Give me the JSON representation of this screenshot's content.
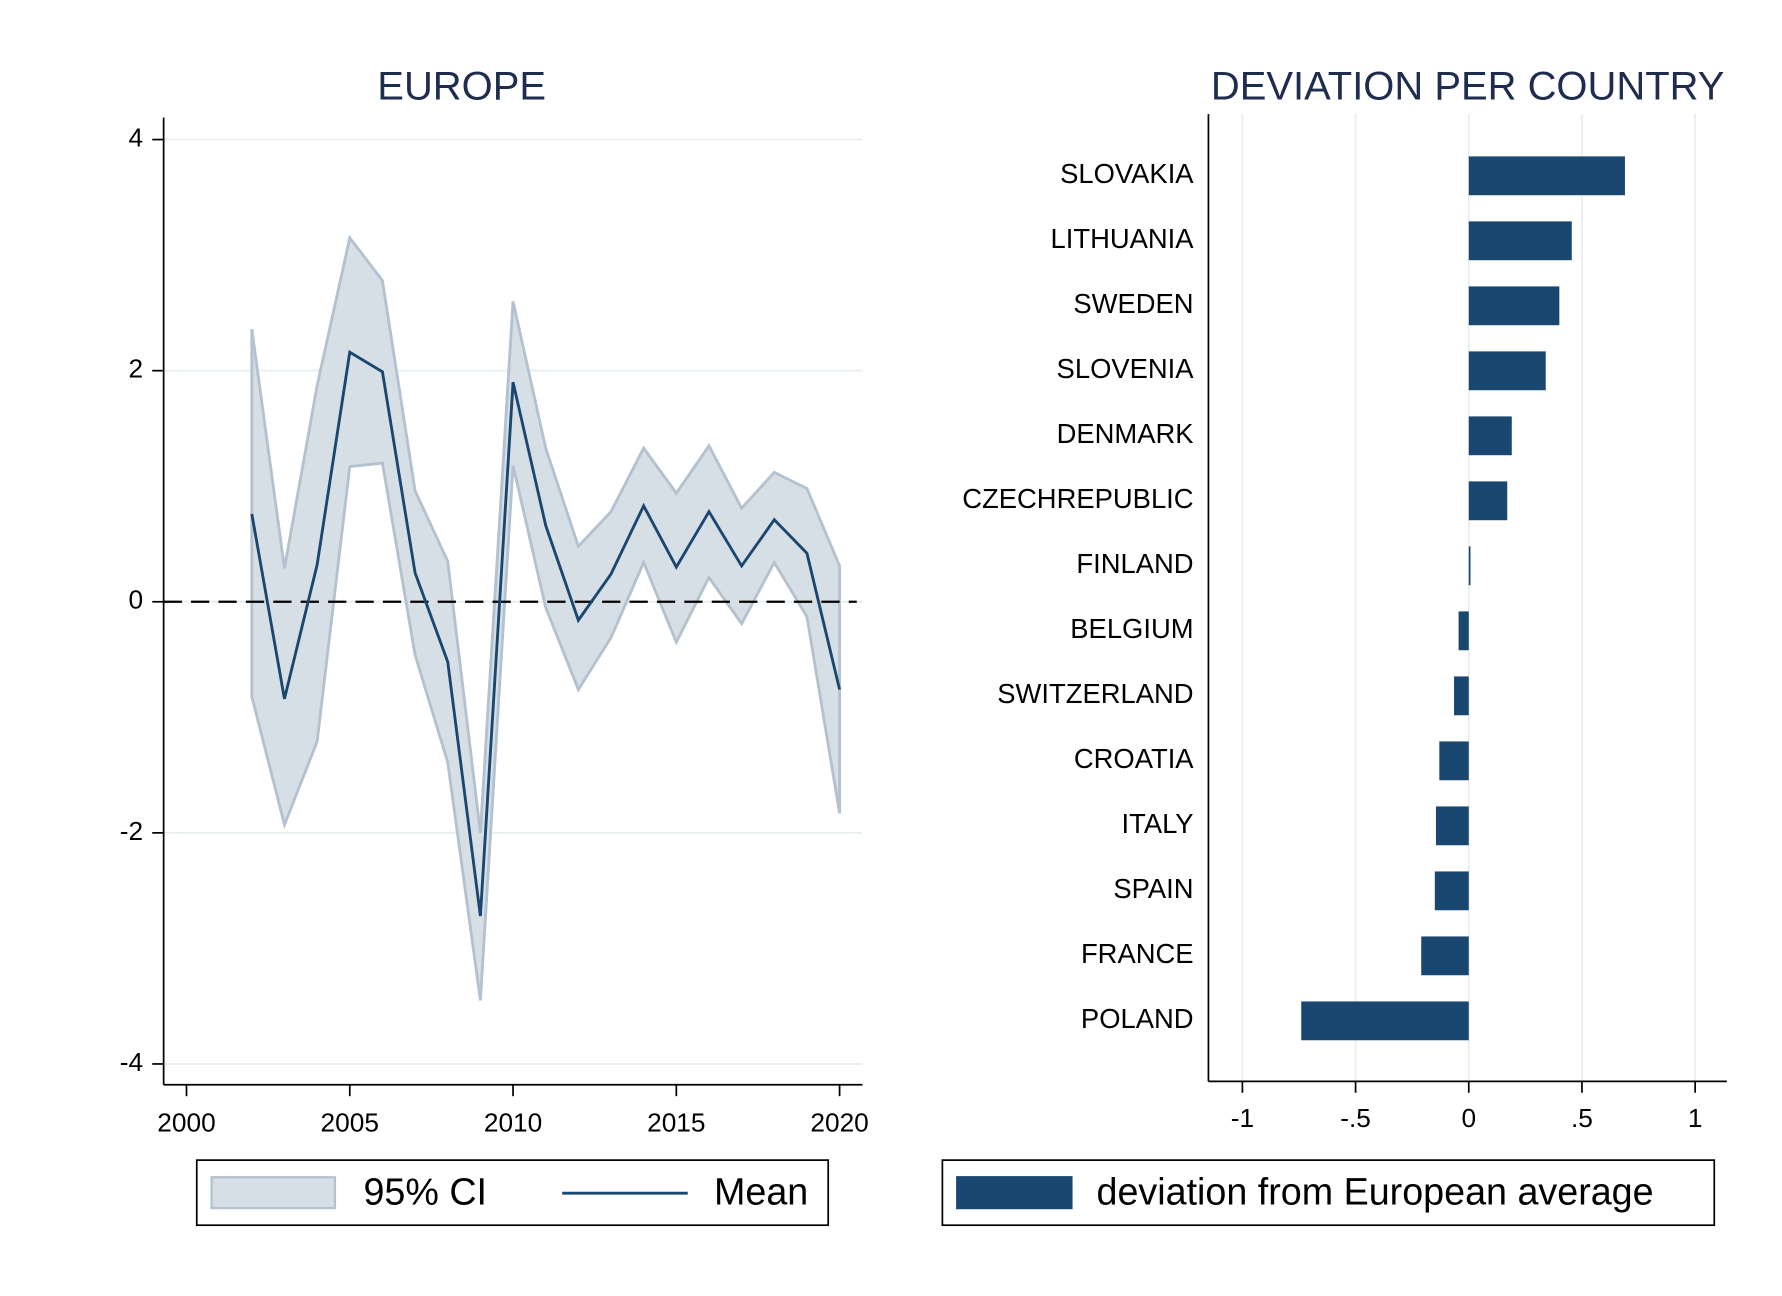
{
  "chart_data": [
    {
      "type": "line",
      "title": "EUROPE",
      "x": [
        2002,
        2003,
        2004,
        2005,
        2006,
        2007,
        2008,
        2009,
        2010,
        2011,
        2012,
        2013,
        2014,
        2015,
        2016,
        2017,
        2018,
        2019,
        2020
      ],
      "series": [
        {
          "name": "95% CI",
          "kind": "band",
          "color": "#d6dee6",
          "edge_color": "#b4c2cf",
          "lower": [
            -0.82,
            -1.93,
            -1.21,
            1.17,
            1.2,
            -0.46,
            -1.39,
            -3.45,
            1.18,
            -0.05,
            -0.76,
            -0.31,
            0.34,
            -0.35,
            0.21,
            -0.19,
            0.34,
            -0.13,
            -1.83
          ],
          "upper": [
            2.36,
            0.29,
            1.87,
            3.15,
            2.78,
            0.96,
            0.35,
            -2.0,
            2.6,
            1.33,
            0.48,
            0.78,
            1.33,
            0.94,
            1.35,
            0.81,
            1.12,
            0.98,
            0.31
          ]
        },
        {
          "name": "Mean",
          "kind": "line",
          "color": "#1a476f",
          "values": [
            0.76,
            -0.84,
            0.32,
            2.16,
            1.99,
            0.25,
            -0.52,
            -2.72,
            1.9,
            0.66,
            -0.16,
            0.24,
            0.83,
            0.3,
            0.78,
            0.31,
            0.71,
            0.42,
            -0.76
          ]
        }
      ],
      "reference_line": {
        "value": 0,
        "style": "dashed"
      },
      "xlim": [
        1999.3,
        2020.7
      ],
      "xticks": [
        2000,
        2005,
        2010,
        2015,
        2020
      ],
      "ylim": [
        -4.18,
        4.19
      ],
      "yticks": [
        -4,
        -2,
        0,
        2,
        4
      ],
      "grid": true,
      "legend": "bottom"
    },
    {
      "type": "hbar",
      "title": "DEVIATION PER COUNTRY",
      "categories": [
        "SLOVAKIA",
        "LITHUANIA",
        "SWEDEN",
        "SLOVENIA",
        "DENMARK",
        "CZECHREPUBLIC",
        "FINLAND",
        "BELGIUM",
        "SWITZERLAND",
        "CROATIA",
        "ITALY",
        "SPAIN",
        "FRANCE",
        "POLAND"
      ],
      "series": [
        {
          "name": "deviation from European average",
          "color": "#1a476f",
          "values": [
            0.69,
            0.455,
            0.4,
            0.34,
            0.19,
            0.17,
            0.005,
            -0.045,
            -0.065,
            -0.13,
            -0.145,
            -0.15,
            -0.21,
            -0.74
          ]
        }
      ],
      "xlim": [
        -1.15,
        1.14
      ],
      "xticks": [
        -1,
        {
          "value": -0.5,
          "label": "-.5"
        },
        0,
        {
          "value": 0.5,
          "label": ".5"
        },
        1
      ],
      "grid": true,
      "legend": "bottom"
    }
  ]
}
